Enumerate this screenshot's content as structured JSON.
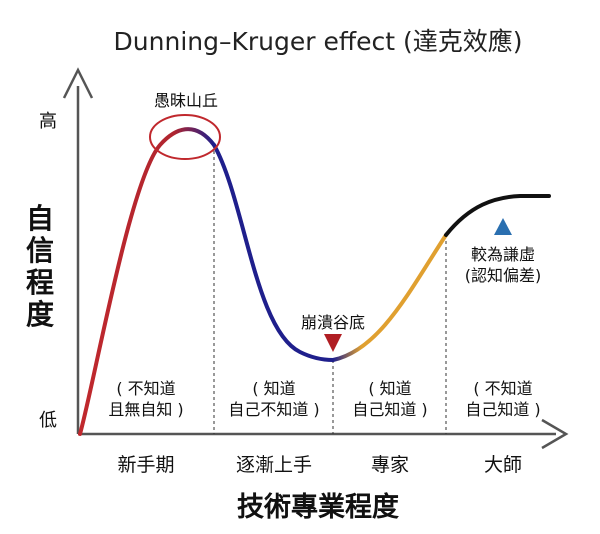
{
  "title": "Dunning–Kruger effect (達克效應)",
  "y_axis": {
    "title_chars": [
      "自",
      "信",
      "程",
      "度"
    ],
    "high": "高",
    "low": "低"
  },
  "x_axis": {
    "title": "技術專業程度",
    "stages": [
      "新手期",
      "逐漸上手",
      "專家",
      "大師"
    ]
  },
  "annotations": {
    "peak": "愚昧山丘",
    "valley": "崩潰谷底",
    "humble_line1": "較為謙虛",
    "humble_line2": "(認知偏差)"
  },
  "zones": [
    {
      "line1": "( 不知道",
      "line2": "且無自知 )"
    },
    {
      "line1": "( 知道",
      "line2": "自己不知道 )"
    },
    {
      "line1": "( 知道",
      "line2": "自己知道 )"
    },
    {
      "line1": "( 不知道",
      "line2": "自己知道 )"
    }
  ],
  "colors": {
    "stage1_curve": "#c0282d",
    "stage2_curve": "#1f1f8c",
    "stage3_curve": "#e0a030",
    "stage4_curve": "#111111",
    "peak_circle": "#c0282d",
    "valley_marker": "#b01e23",
    "humble_marker": "#2a6fb0"
  }
}
